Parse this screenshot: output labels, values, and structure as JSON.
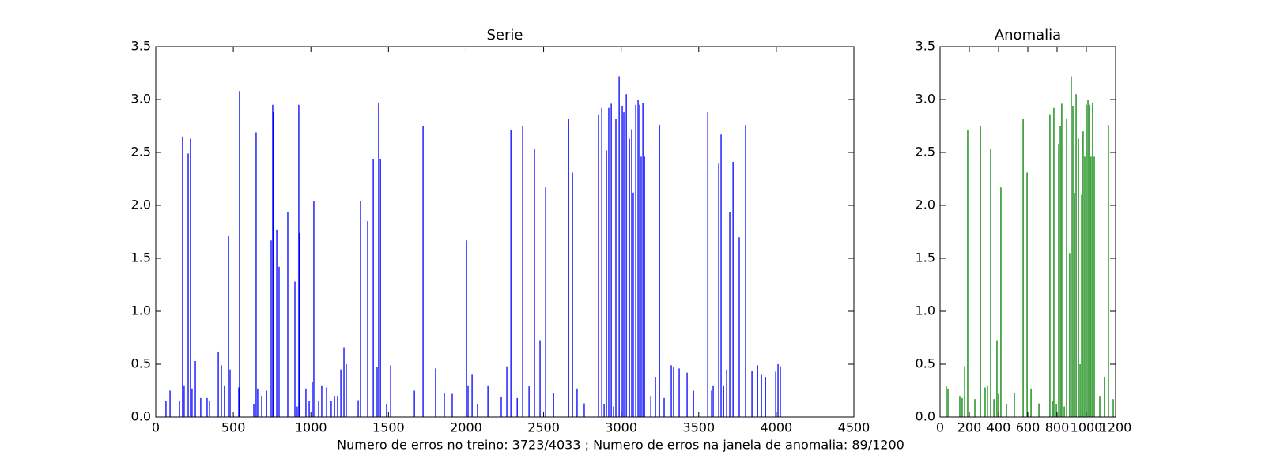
{
  "chart_data": [
    {
      "type": "vlines",
      "title": "Serie",
      "color": "#0000ff",
      "xlim": [
        0,
        4500
      ],
      "xticks": [
        0,
        500,
        1000,
        1500,
        2000,
        2500,
        3000,
        3500,
        4000,
        4500
      ],
      "ylim": [
        0,
        3.5
      ],
      "yticks": [
        {
          "value": 0,
          "label": "0.0"
        },
        0.5,
        {
          "value": 1,
          "label": "1.0"
        },
        1.5,
        {
          "value": 2,
          "label": "2.0"
        },
        2.5,
        {
          "value": 3,
          "label": "3.0"
        },
        3.5
      ],
      "x": [
        66,
        92,
        153,
        173,
        183,
        209,
        224,
        234,
        255,
        290,
        331,
        347,
        403,
        423,
        443,
        469,
        479,
        535,
        540,
        632,
        647,
        657,
        683,
        714,
        744,
        754,
        759,
        780,
        795,
        851,
        897,
        912,
        922,
        928,
        968,
        989,
        1009,
        1019,
        1050,
        1070,
        1101,
        1131,
        1152,
        1172,
        1193,
        1213,
        1228,
        1305,
        1320,
        1366,
        1402,
        1427,
        1437,
        1448,
        1488,
        1514,
        1667,
        1723,
        1804,
        1860,
        1911,
        2003,
        2013,
        2039,
        2074,
        2141,
        2227,
        2263,
        2289,
        2330,
        2365,
        2406,
        2441,
        2477,
        2513,
        2564,
        2661,
        2686,
        2716,
        2762,
        2854,
        2875,
        2890,
        2905,
        2920,
        2936,
        2951,
        2966,
        2987,
        3007,
        3017,
        3033,
        3053,
        3068,
        3078,
        3094,
        3109,
        3119,
        3129,
        3140,
        3150,
        3191,
        3221,
        3247,
        3277,
        3323,
        3338,
        3374,
        3425,
        3466,
        3558,
        3583,
        3593,
        3629,
        3644,
        3660,
        3680,
        3700,
        3721,
        3761,
        3802,
        3843,
        3879,
        3904,
        3930,
        3996,
        4011,
        4026
      ],
      "values": [
        0.15,
        0.25,
        0.15,
        2.65,
        0.3,
        2.49,
        2.63,
        0.27,
        0.53,
        0.18,
        0.18,
        0.15,
        0.62,
        0.49,
        0.3,
        1.71,
        0.45,
        0.28,
        3.08,
        0.12,
        2.69,
        0.27,
        0.2,
        0.25,
        1.67,
        2.95,
        2.88,
        1.77,
        1.42,
        1.94,
        1.28,
        0.1,
        2.95,
        1.74,
        0.27,
        0.15,
        0.33,
        2.04,
        0.15,
        0.3,
        0.28,
        0.15,
        0.2,
        0.2,
        0.45,
        0.66,
        0.5,
        0.16,
        2.04,
        1.85,
        2.44,
        0.47,
        2.97,
        2.44,
        0.12,
        0.49,
        0.25,
        2.75,
        0.46,
        0.23,
        0.22,
        1.67,
        0.3,
        0.4,
        0.12,
        0.3,
        0.19,
        0.48,
        2.71,
        0.18,
        2.75,
        0.29,
        2.53,
        0.72,
        2.17,
        0.23,
        2.82,
        2.31,
        0.27,
        0.13,
        2.86,
        2.92,
        0.12,
        2.52,
        2.92,
        2.96,
        0.1,
        2.82,
        3.22,
        2.94,
        2.88,
        3.05,
        2.63,
        2.72,
        2.12,
        2.95,
        3.0,
        2.95,
        2.46,
        2.97,
        2.46,
        0.2,
        0.38,
        2.76,
        0.18,
        0.49,
        0.47,
        0.46,
        0.42,
        0.25,
        2.88,
        0.25,
        0.3,
        2.4,
        2.67,
        0.3,
        0.45,
        1.94,
        2.41,
        1.7,
        2.76,
        0.44,
        0.49,
        0.4,
        0.38,
        0.43,
        0.5,
        0.48
      ]
    },
    {
      "type": "vlines",
      "title": "Anomalia",
      "color": "#008000",
      "xlim": [
        0,
        1200
      ],
      "xticks": [
        0,
        200,
        400,
        600,
        800,
        1000,
        1200
      ],
      "ylim": [
        0,
        3.5
      ],
      "yticks": [
        {
          "value": 0,
          "label": "0.0"
        },
        0.5,
        {
          "value": 1,
          "label": "1.0"
        },
        1.5,
        {
          "value": 2,
          "label": "2.0"
        },
        2.5,
        {
          "value": 3,
          "label": "3.0"
        },
        3.5
      ],
      "x": [
        43,
        54,
        135,
        151,
        168,
        189,
        238,
        276,
        308,
        324,
        346,
        368,
        389,
        400,
        416,
        454,
        508,
        568,
        595,
        622,
        676,
        751,
        768,
        778,
        795,
        811,
        822,
        832,
        849,
        865,
        886,
        897,
        908,
        919,
        930,
        946,
        957,
        968,
        978,
        989,
        1000,
        1011,
        1022,
        1032,
        1043,
        1054,
        1092,
        1124,
        1151,
        1184
      ],
      "values": [
        0.29,
        0.27,
        0.2,
        0.18,
        0.48,
        2.71,
        0.17,
        2.75,
        0.28,
        0.3,
        2.53,
        0.17,
        0.72,
        0.22,
        2.17,
        0.12,
        0.23,
        2.82,
        2.31,
        0.27,
        0.13,
        2.86,
        0.15,
        2.92,
        0.12,
        2.58,
        2.75,
        2.96,
        0.1,
        2.82,
        1.55,
        3.22,
        2.94,
        2.12,
        3.05,
        2.63,
        0.5,
        2.1,
        2.7,
        2.46,
        2.95,
        3.0,
        2.95,
        2.46,
        2.97,
        2.46,
        0.2,
        0.38,
        2.76,
        0.17
      ]
    }
  ],
  "caption": "Numero de erros no treino: 3723/4033 ; Numero de erros na janela de  anomalia: 89/1200"
}
